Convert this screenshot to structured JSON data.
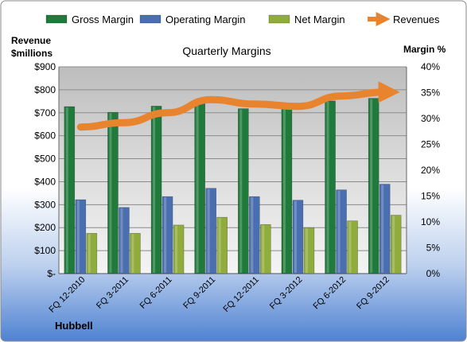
{
  "chart_data": {
    "type": "bar",
    "title": "Quarterly Margins",
    "company": "Hubbell",
    "left_axis_label": [
      "Revenue",
      "$millions"
    ],
    "right_axis_label": "Margin %",
    "categories": [
      "FQ 12-2010",
      "FQ 3-2011",
      "FQ 6-2011",
      "FQ 9-2011",
      "FQ 12-2011",
      "FQ 3-2012",
      "FQ 6-2012",
      "FQ 9-2012"
    ],
    "left_ylim": [
      0,
      900
    ],
    "left_ticks": [
      0,
      100,
      200,
      300,
      400,
      500,
      600,
      700,
      800,
      900
    ],
    "left_tick_labels": [
      "$-",
      "$100",
      "$200",
      "$300",
      "$400",
      "$500",
      "$600",
      "$700",
      "$800",
      "$900"
    ],
    "right_ylim": [
      0,
      40
    ],
    "right_ticks": [
      0,
      5,
      10,
      15,
      20,
      25,
      30,
      35,
      40
    ],
    "right_tick_labels": [
      "0%",
      "5%",
      "10%",
      "15%",
      "20%",
      "25%",
      "30%",
      "35%",
      "40%"
    ],
    "legend_position": "top",
    "series": [
      {
        "name": "Gross Margin",
        "axis": "right",
        "kind": "bar",
        "color": "#1f7a3c",
        "values": [
          32.3,
          31.2,
          32.4,
          33.0,
          31.9,
          32.2,
          33.4,
          33.9
        ]
      },
      {
        "name": "Operating Margin",
        "axis": "right",
        "kind": "bar",
        "color": "#4a6fb0",
        "values": [
          14.3,
          12.8,
          14.9,
          16.5,
          14.9,
          14.2,
          16.2,
          17.3
        ]
      },
      {
        "name": "Net Margin",
        "axis": "right",
        "kind": "bar",
        "color": "#8fac3c",
        "values": [
          7.8,
          7.8,
          9.4,
          10.9,
          9.5,
          8.9,
          10.2,
          11.3
        ]
      },
      {
        "name": "Revenues",
        "axis": "left",
        "kind": "line",
        "color": "#e8842e",
        "values": [
          638,
          657,
          700,
          757,
          738,
          728,
          773,
          790
        ]
      }
    ]
  }
}
